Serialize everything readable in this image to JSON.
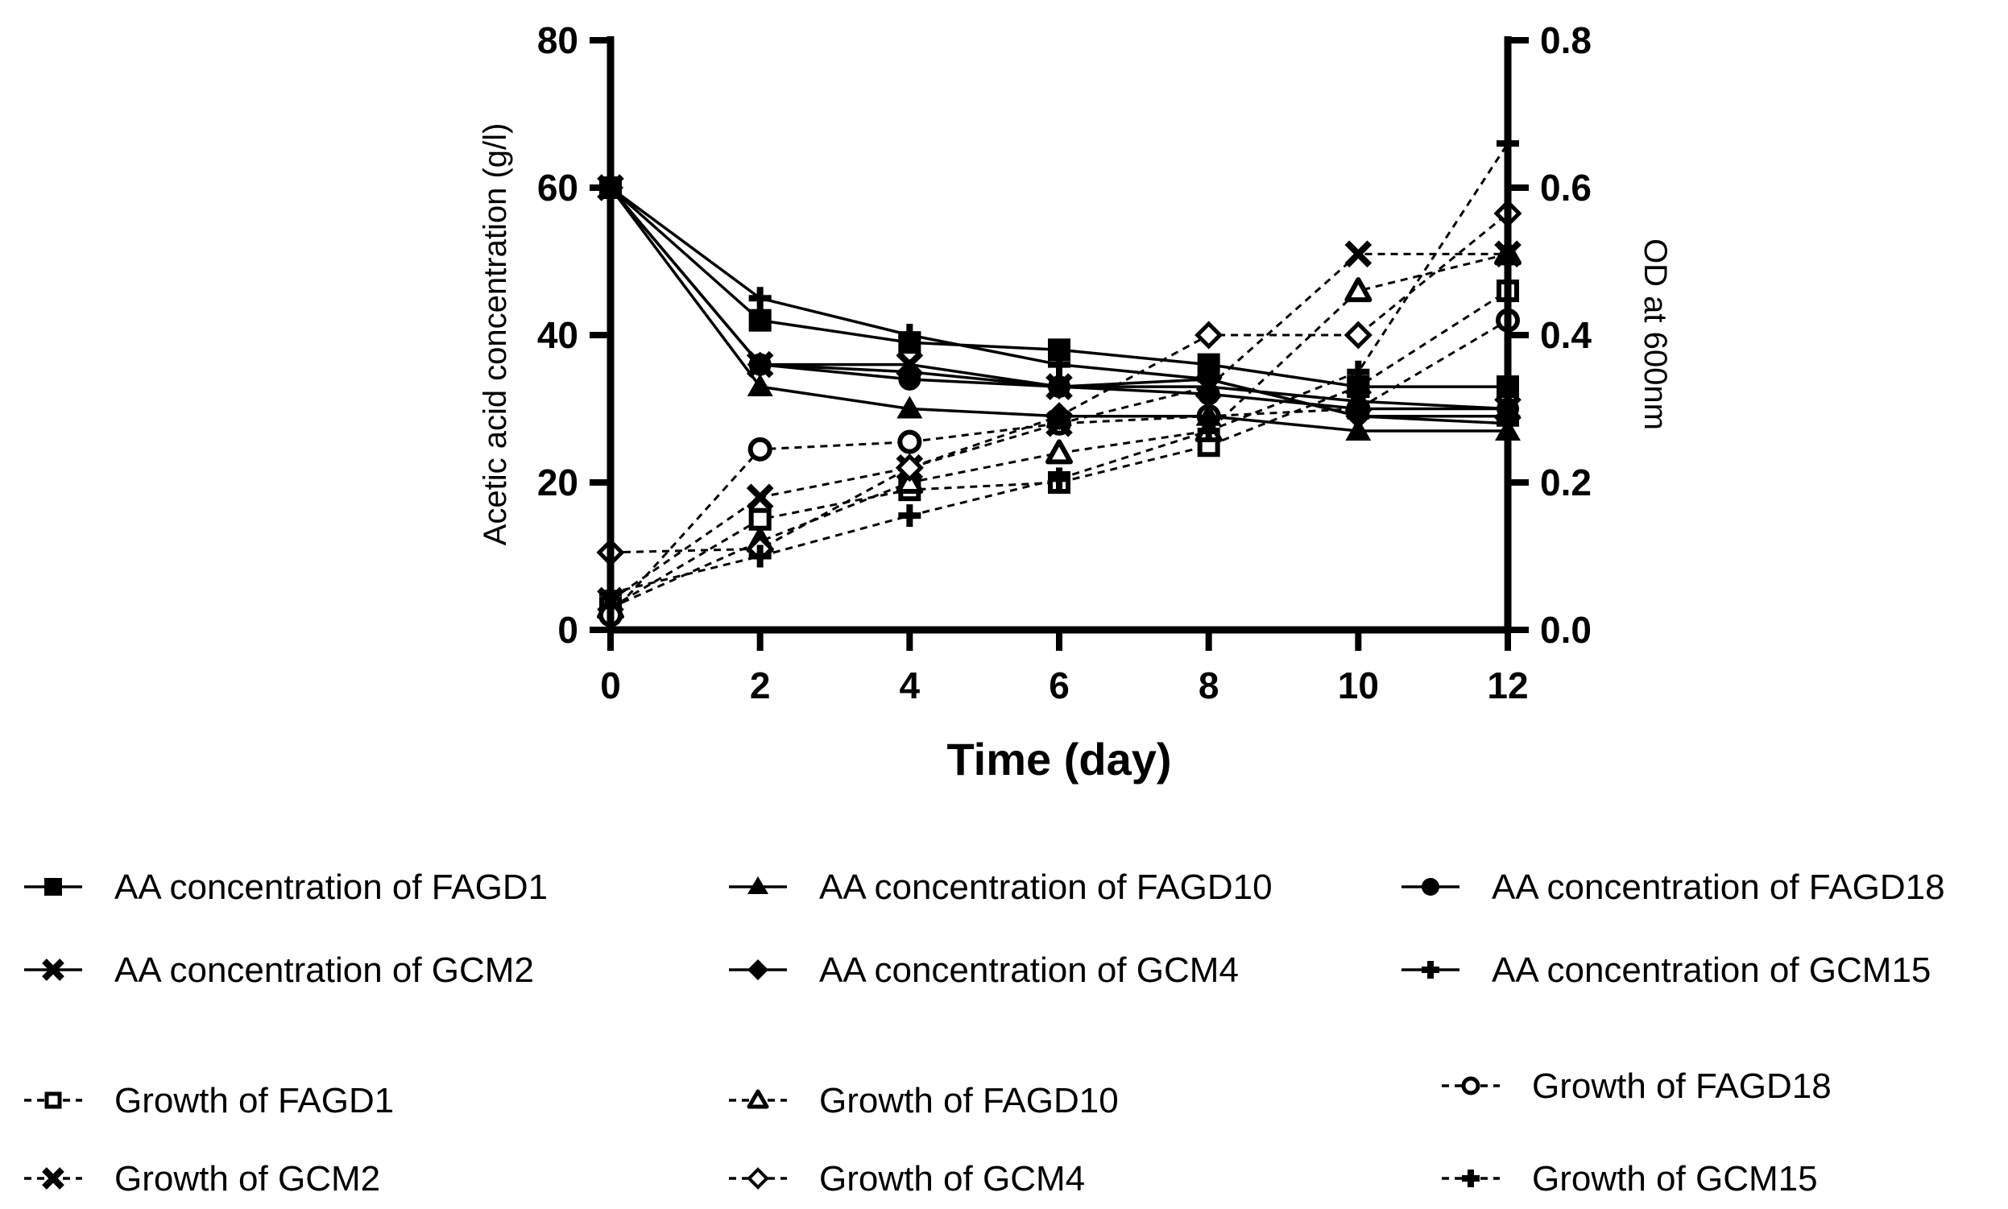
{
  "chart_data": {
    "type": "line",
    "title": "",
    "xlabel": "Time (day)",
    "ylabel": "Acetic acid concentration (g/l)",
    "y2label": "OD at 600nm",
    "xlim": [
      0,
      12
    ],
    "ylim": [
      0,
      80
    ],
    "y2lim": [
      0,
      0.8
    ],
    "x_ticks": [
      "0",
      "2",
      "4",
      "6",
      "8",
      "10",
      "12"
    ],
    "y_ticks": [
      "0",
      "20",
      "40",
      "60",
      "80"
    ],
    "y2_ticks": [
      "0.0",
      "0.2",
      "0.4",
      "0.6",
      "0.8"
    ],
    "grid": false,
    "legend_position": "bottom",
    "x": [
      0,
      2,
      4,
      6,
      8,
      10,
      12
    ],
    "series": [
      {
        "name": "AA concentration of FAGD1",
        "axis": "left",
        "style": "solid",
        "marker": "square",
        "values": [
          60,
          42,
          39,
          38,
          36,
          33,
          33
        ]
      },
      {
        "name": "AA concentration of FAGD10",
        "axis": "left",
        "style": "solid",
        "marker": "triangle",
        "values": [
          60,
          33,
          30,
          29,
          29,
          27,
          27
        ]
      },
      {
        "name": "AA concentration of FAGD18",
        "axis": "left",
        "style": "solid",
        "marker": "circle",
        "values": [
          60,
          36,
          34,
          33,
          32,
          30,
          30
        ]
      },
      {
        "name": "AA concentration of GCM2",
        "axis": "left",
        "style": "solid",
        "marker": "x",
        "values": [
          60,
          36,
          36,
          33,
          33,
          31,
          30
        ]
      },
      {
        "name": "AA concentration of GCM4",
        "axis": "left",
        "style": "solid",
        "marker": "diamond",
        "values": [
          60,
          36,
          35,
          33,
          34,
          29,
          29
        ]
      },
      {
        "name": "AA concentration of GCM15",
        "axis": "left",
        "style": "solid",
        "marker": "plus",
        "values": [
          60,
          45,
          40,
          36,
          34,
          29,
          28
        ]
      },
      {
        "name": "Growth of FAGD1",
        "axis": "right",
        "style": "dashed",
        "marker": "square-open",
        "values": [
          0.03,
          0.15,
          0.19,
          0.2,
          0.25,
          0.33,
          0.46
        ]
      },
      {
        "name": "Growth of FAGD10",
        "axis": "right",
        "style": "dashed",
        "marker": "triangle-open",
        "values": [
          0.03,
          0.12,
          0.2,
          0.24,
          0.27,
          0.46,
          0.51
        ]
      },
      {
        "name": "Growth of FAGD18",
        "axis": "right",
        "style": "dashed",
        "marker": "circle-open",
        "values": [
          0.02,
          0.245,
          0.255,
          0.28,
          0.29,
          0.3,
          0.42
        ]
      },
      {
        "name": "Growth of GCM2",
        "axis": "right",
        "style": "dashed",
        "marker": "x",
        "values": [
          0.04,
          0.18,
          0.22,
          0.28,
          0.33,
          0.51,
          0.51
        ]
      },
      {
        "name": "Growth of GCM4",
        "axis": "right",
        "style": "dashed",
        "marker": "diamond-open",
        "values": [
          0.105,
          0.11,
          0.22,
          0.29,
          0.4,
          0.4,
          0.565
        ]
      },
      {
        "name": "Growth of GCM15",
        "axis": "right",
        "style": "dashed",
        "marker": "plus",
        "values": [
          0.05,
          0.1,
          0.155,
          0.205,
          0.27,
          0.35,
          0.66
        ]
      }
    ]
  }
}
